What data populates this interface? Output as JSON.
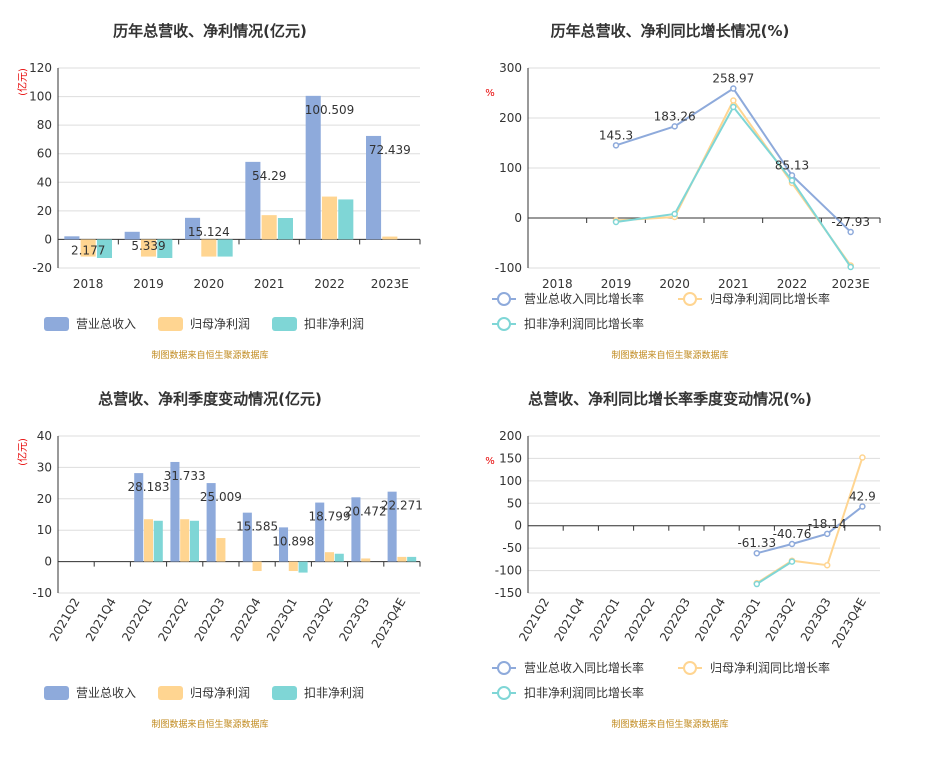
{
  "chart_data": [
    {
      "type": "bar",
      "title": "历年总营收、净利情况(亿元)",
      "ylabel": "(亿元)",
      "categories": [
        "2018",
        "2019",
        "2020",
        "2021",
        "2022",
        "2023E"
      ],
      "ylim": [
        -20,
        120
      ],
      "yticks": [
        -20,
        0,
        20,
        40,
        60,
        80,
        100,
        120
      ],
      "series": [
        {
          "name": "营业总收入",
          "color": "#8eaadb",
          "values": [
            2.177,
            5.339,
            15.124,
            54.29,
            100.509,
            72.439
          ],
          "labels": [
            "2.177",
            "5.339",
            "15.124",
            "54.29",
            "100.509",
            "72.439"
          ]
        },
        {
          "name": "归母净利润",
          "color": "#ffd591",
          "values": [
            -12,
            -12,
            -12,
            17,
            30,
            2
          ],
          "labels": []
        },
        {
          "name": "扣非净利润",
          "color": "#7fd6d6",
          "values": [
            -13,
            -13,
            -12,
            15,
            28,
            null
          ],
          "labels": []
        }
      ],
      "source": "制图数据来自恒生聚源数据库",
      "legend": "bottom-left",
      "grid": true
    },
    {
      "type": "line",
      "title": "历年总营收、净利同比增长情况(%)",
      "ylabel": "%",
      "categories": [
        "2018",
        "2019",
        "2020",
        "2021",
        "2022",
        "2023E"
      ],
      "ylim": [
        -100,
        300
      ],
      "yticks": [
        -100,
        0,
        100,
        200,
        300
      ],
      "series": [
        {
          "name": "营业总收入同比增长率",
          "color": "#8eaadb",
          "values": [
            null,
            145.3,
            183.26,
            258.97,
            85.13,
            -27.93
          ],
          "labels": [
            "",
            "145.3",
            "183.26",
            "258.97",
            "85.13",
            "-27.93"
          ]
        },
        {
          "name": "归母净利润同比增长率",
          "color": "#ffd591",
          "values": [
            null,
            -5,
            2,
            235,
            70,
            -95
          ],
          "labels": []
        },
        {
          "name": "扣非净利润同比增长率",
          "color": "#7fd6d6",
          "values": [
            null,
            -8,
            8,
            222,
            75,
            -98
          ],
          "labels": []
        }
      ],
      "source": "制图数据来自恒生聚源数据库",
      "legend": "bottom-left",
      "grid": true
    },
    {
      "type": "bar",
      "title": "总营收、净利季度变动情况(亿元)",
      "ylabel": "(亿元)",
      "categories": [
        "2021Q2",
        "2021Q4",
        "2022Q1",
        "2022Q2",
        "2022Q3",
        "2022Q4",
        "2023Q1",
        "2023Q2",
        "2023Q3",
        "2023Q4E"
      ],
      "ylim": [
        -10,
        40
      ],
      "yticks": [
        -10,
        0,
        10,
        20,
        30,
        40
      ],
      "series": [
        {
          "name": "营业总收入",
          "color": "#8eaadb",
          "values": [
            null,
            null,
            28.183,
            31.733,
            25.009,
            15.585,
            10.898,
            18.799,
            20.472,
            22.271
          ],
          "labels": [
            "",
            "",
            "28.183",
            "31.733",
            "25.009",
            "15.585",
            "10.898",
            "18.799",
            "20.472",
            "22.271"
          ]
        },
        {
          "name": "归母净利润",
          "color": "#ffd591",
          "values": [
            null,
            null,
            13.5,
            13.5,
            7.5,
            -3,
            -3,
            3,
            1,
            1.5
          ],
          "labels": []
        },
        {
          "name": "扣非净利润",
          "color": "#7fd6d6",
          "values": [
            null,
            null,
            13,
            13,
            null,
            null,
            -3.5,
            2.5,
            null,
            1.5
          ],
          "labels": []
        }
      ],
      "source": "制图数据来自恒生聚源数据库",
      "legend": "bottom-left",
      "grid": true
    },
    {
      "type": "line",
      "title": "总营收、净利同比增长率季度变动情况(%)",
      "ylabel": "%",
      "categories": [
        "2021Q2",
        "2021Q4",
        "2022Q1",
        "2022Q2",
        "2022Q3",
        "2022Q4",
        "2023Q1",
        "2023Q2",
        "2023Q3",
        "2023Q4E"
      ],
      "ylim": [
        -150,
        200
      ],
      "yticks": [
        -150,
        -100,
        -50,
        0,
        50,
        100,
        150,
        200
      ],
      "series": [
        {
          "name": "营业总收入同比增长率",
          "color": "#8eaadb",
          "values": [
            null,
            null,
            null,
            null,
            null,
            null,
            -61.33,
            -40.76,
            -18.14,
            42.9
          ],
          "labels": [
            "",
            "",
            "",
            "",
            "",
            "",
            "-61.33",
            "-40.76",
            "-18.14",
            "42.9"
          ]
        },
        {
          "name": "归母净利润同比增长率",
          "color": "#ffd591",
          "values": [
            null,
            null,
            null,
            null,
            null,
            null,
            -128,
            -78,
            -88,
            152
          ],
          "labels": []
        },
        {
          "name": "扣非净利润同比增长率",
          "color": "#7fd6d6",
          "values": [
            null,
            null,
            null,
            null,
            null,
            null,
            -130,
            -80,
            null,
            null
          ],
          "labels": []
        }
      ],
      "source": "制图数据来自恒生聚源数据库",
      "legend": "bottom-left",
      "grid": true
    }
  ]
}
